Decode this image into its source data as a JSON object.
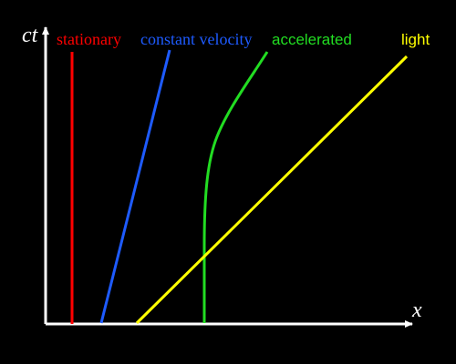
{
  "axes": {
    "x_label": "x",
    "y_label": "ct",
    "color": "#ffffff"
  },
  "worldlines": [
    {
      "id": "stationary",
      "label": "stationary",
      "color": "#ff0000"
    },
    {
      "id": "constant-velocity",
      "label": "constant velocity",
      "color": "#1e5bff"
    },
    {
      "id": "accelerated",
      "label": "accelerated",
      "color": "#22dd22"
    },
    {
      "id": "light",
      "label": "light",
      "color": "#ffff00"
    }
  ]
}
